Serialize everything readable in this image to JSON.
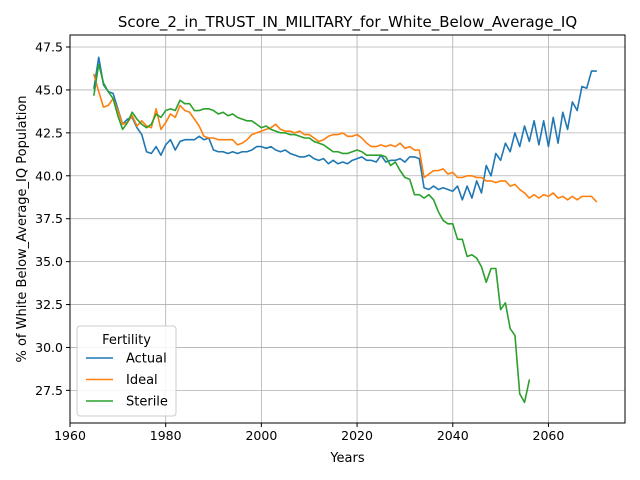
{
  "chart_data": {
    "type": "line",
    "title": "Score_2_in_TRUST_IN_MILITARY_for_White_Below_Average_IQ",
    "xlabel": "Years",
    "ylabel": "% of White Below_Average_IQ Population",
    "xlim": [
      1960,
      2076
    ],
    "ylim": [
      25.6,
      48.2
    ],
    "xticks": [
      1960,
      1980,
      2000,
      2020,
      2040,
      2060
    ],
    "yticks": [
      27.5,
      30.0,
      32.5,
      35.0,
      37.5,
      40.0,
      42.5,
      45.0,
      47.5
    ],
    "grid": true,
    "legend": {
      "title": "Fertility",
      "placement": "lower-left"
    },
    "series": [
      {
        "name": "Actual",
        "color": "#1f77b4",
        "x": [
          1965,
          1966,
          1967,
          1968,
          1969,
          1970,
          1971,
          1972,
          1973,
          1974,
          1975,
          1976,
          1977,
          1978,
          1979,
          1980,
          1981,
          1982,
          1983,
          1984,
          1985,
          1986,
          1987,
          1988,
          1989,
          1990,
          1991,
          1992,
          1993,
          1994,
          1995,
          1996,
          1997,
          1998,
          1999,
          2000,
          2001,
          2002,
          2003,
          2004,
          2005,
          2006,
          2007,
          2008,
          2009,
          2010,
          2011,
          2012,
          2013,
          2014,
          2015,
          2016,
          2017,
          2018,
          2019,
          2020,
          2021,
          2022,
          2023,
          2024,
          2025,
          2026,
          2027,
          2028,
          2029,
          2030,
          2031,
          2032,
          2033,
          2034,
          2035,
          2036,
          2037,
          2038,
          2039,
          2040,
          2041,
          2042,
          2043,
          2044,
          2045,
          2046,
          2047,
          2048,
          2049,
          2050,
          2051,
          2052,
          2053,
          2054,
          2055,
          2056,
          2057,
          2058,
          2059,
          2060,
          2061,
          2062,
          2063,
          2064,
          2065,
          2066,
          2067,
          2068,
          2069,
          2070
        ],
        "y": [
          45.1,
          46.9,
          45.3,
          44.9,
          44.8,
          43.9,
          43.0,
          43.3,
          43.4,
          42.8,
          42.4,
          41.4,
          41.3,
          41.7,
          41.2,
          41.8,
          42.1,
          41.5,
          42.0,
          42.1,
          42.1,
          42.1,
          42.3,
          42.1,
          42.2,
          41.5,
          41.4,
          41.4,
          41.3,
          41.4,
          41.3,
          41.4,
          41.4,
          41.5,
          41.7,
          41.7,
          41.6,
          41.7,
          41.5,
          41.4,
          41.5,
          41.3,
          41.2,
          41.1,
          41.1,
          41.2,
          41.0,
          40.9,
          41.0,
          40.7,
          40.9,
          40.7,
          40.8,
          40.7,
          40.9,
          41.0,
          41.1,
          40.9,
          40.9,
          40.8,
          41.2,
          40.8,
          40.9,
          40.9,
          41.0,
          40.8,
          41.1,
          41.1,
          41.0,
          39.3,
          39.2,
          39.4,
          39.2,
          39.3,
          39.2,
          39.1,
          39.4,
          38.6,
          39.4,
          38.7,
          39.7,
          39.0,
          40.6,
          40.0,
          41.3,
          40.9,
          41.9,
          41.4,
          42.5,
          41.7,
          42.9,
          42.0,
          43.2,
          41.8,
          43.2,
          41.7,
          43.4,
          41.9,
          43.7,
          42.7,
          44.3,
          43.8,
          45.2,
          45.1,
          46.1,
          46.1
        ]
      },
      {
        "name": "Ideal",
        "color": "#ff7f0e",
        "x": [
          1965,
          1966,
          1967,
          1968,
          1969,
          1970,
          1971,
          1972,
          1973,
          1974,
          1975,
          1976,
          1977,
          1978,
          1979,
          1980,
          1981,
          1982,
          1983,
          1984,
          1985,
          1986,
          1987,
          1988,
          1989,
          1990,
          1991,
          1992,
          1993,
          1994,
          1995,
          1996,
          1997,
          1998,
          1999,
          2000,
          2001,
          2002,
          2003,
          2004,
          2005,
          2006,
          2007,
          2008,
          2009,
          2010,
          2011,
          2012,
          2013,
          2014,
          2015,
          2016,
          2017,
          2018,
          2019,
          2020,
          2021,
          2022,
          2023,
          2024,
          2025,
          2026,
          2027,
          2028,
          2029,
          2030,
          2031,
          2032,
          2033,
          2034,
          2035,
          2036,
          2037,
          2038,
          2039,
          2040,
          2041,
          2042,
          2043,
          2044,
          2045,
          2046,
          2047,
          2048,
          2049,
          2050,
          2051,
          2052,
          2053,
          2054,
          2055,
          2056,
          2057,
          2058,
          2059,
          2060,
          2061,
          2062,
          2063,
          2064,
          2065,
          2066,
          2067,
          2068,
          2069,
          2070
        ],
        "y": [
          45.9,
          44.9,
          44.0,
          44.1,
          44.5,
          43.8,
          43.0,
          43.1,
          43.5,
          42.9,
          43.2,
          42.9,
          42.8,
          43.9,
          42.7,
          43.1,
          43.6,
          43.4,
          44.1,
          43.8,
          43.7,
          43.3,
          42.9,
          42.3,
          42.2,
          42.2,
          42.1,
          42.1,
          42.1,
          42.1,
          41.8,
          41.9,
          42.1,
          42.4,
          42.5,
          42.6,
          42.7,
          42.8,
          43.0,
          42.7,
          42.6,
          42.6,
          42.5,
          42.6,
          42.4,
          42.4,
          42.2,
          42.0,
          42.1,
          42.3,
          42.4,
          42.4,
          42.5,
          42.3,
          42.3,
          42.4,
          42.2,
          41.9,
          41.7,
          41.7,
          41.8,
          41.7,
          41.8,
          41.7,
          41.9,
          41.6,
          41.7,
          41.5,
          41.5,
          39.9,
          40.1,
          40.3,
          40.3,
          40.4,
          40.1,
          40.2,
          39.9,
          39.9,
          40.0,
          40.0,
          39.9,
          39.9,
          39.7,
          39.7,
          39.6,
          39.7,
          39.7,
          39.4,
          39.5,
          39.2,
          39.0,
          38.7,
          38.9,
          38.7,
          38.9,
          38.8,
          39.0,
          38.7,
          38.8,
          38.6,
          38.8,
          38.6,
          38.8,
          38.8,
          38.8,
          38.5
        ]
      },
      {
        "name": "Sterile",
        "color": "#2ca02c",
        "x": [
          1965,
          1966,
          1967,
          1968,
          1969,
          1970,
          1971,
          1972,
          1973,
          1974,
          1975,
          1976,
          1977,
          1978,
          1979,
          1980,
          1981,
          1982,
          1983,
          1984,
          1985,
          1986,
          1987,
          1988,
          1989,
          1990,
          1991,
          1992,
          1993,
          1994,
          1995,
          1996,
          1997,
          1998,
          1999,
          2000,
          2001,
          2002,
          2003,
          2004,
          2005,
          2006,
          2007,
          2008,
          2009,
          2010,
          2011,
          2012,
          2013,
          2014,
          2015,
          2016,
          2017,
          2018,
          2019,
          2020,
          2021,
          2022,
          2023,
          2024,
          2025,
          2026,
          2027,
          2028,
          2029,
          2030,
          2031,
          2032,
          2033,
          2034,
          2035,
          2036,
          2037,
          2038,
          2039,
          2040,
          2041,
          2042,
          2043,
          2044,
          2045,
          2046,
          2047,
          2048,
          2049,
          2050,
          2051,
          2052,
          2053,
          2054,
          2055,
          2056
        ],
        "y": [
          44.7,
          46.5,
          45.4,
          44.9,
          44.5,
          43.5,
          42.7,
          43.1,
          43.7,
          43.3,
          43.0,
          42.8,
          43.0,
          43.6,
          43.4,
          43.8,
          43.9,
          43.8,
          44.4,
          44.2,
          44.2,
          43.8,
          43.8,
          43.9,
          43.9,
          43.8,
          43.6,
          43.7,
          43.5,
          43.6,
          43.4,
          43.3,
          43.2,
          43.2,
          43.0,
          42.8,
          42.9,
          42.7,
          42.6,
          42.5,
          42.5,
          42.4,
          42.4,
          42.3,
          42.2,
          42.2,
          42.0,
          41.9,
          41.8,
          41.6,
          41.4,
          41.4,
          41.3,
          41.3,
          41.4,
          41.5,
          41.4,
          41.2,
          41.2,
          41.2,
          41.2,
          41.1,
          40.6,
          40.8,
          40.3,
          39.9,
          39.8,
          38.9,
          38.9,
          38.7,
          38.9,
          38.6,
          37.9,
          37.4,
          37.2,
          37.2,
          36.3,
          36.3,
          35.3,
          35.4,
          35.2,
          34.7,
          33.8,
          34.6,
          34.6,
          32.2,
          32.6,
          31.1,
          30.7,
          27.3,
          26.8,
          28.1
        ]
      }
    ]
  }
}
